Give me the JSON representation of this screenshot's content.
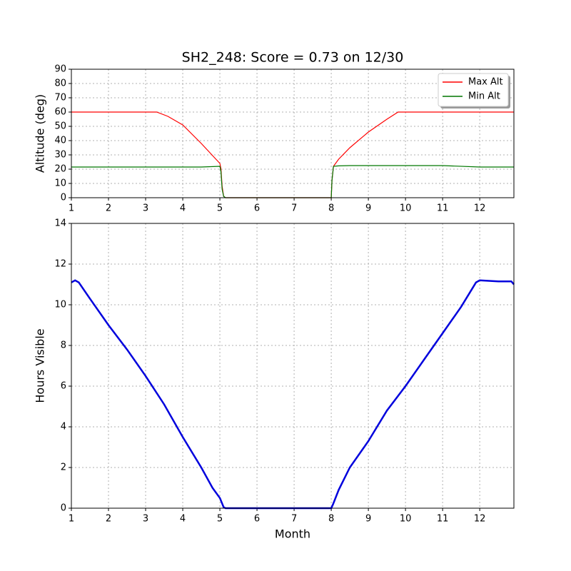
{
  "chart_data": [
    {
      "type": "line",
      "title": "SH2_248: Score = 0.73 on 12/30",
      "ylabel": "Altitude (deg)",
      "x": [
        1,
        2,
        3,
        3.3,
        3.6,
        4,
        4.5,
        5,
        5.03,
        5.06,
        5.1,
        5.15,
        6,
        7,
        8,
        8.02,
        8.06,
        8.2,
        8.5,
        9,
        9.5,
        9.8,
        10,
        11,
        12,
        12.92
      ],
      "series": [
        {
          "name": "Max Alt",
          "color": "#ff0000",
          "values": [
            60,
            60,
            60,
            60,
            57,
            51,
            38,
            24,
            20,
            8,
            1,
            0,
            0,
            0,
            0,
            12,
            22,
            27,
            35,
            46,
            55,
            60,
            60,
            60,
            60,
            60
          ]
        },
        {
          "name": "Min Alt",
          "color": "#007700",
          "values": [
            21.5,
            21.5,
            21.5,
            21.5,
            21.5,
            21.5,
            21.5,
            22,
            18,
            6,
            1,
            0,
            0,
            0,
            0,
            12,
            22,
            22.3,
            22.5,
            22.5,
            22.5,
            22.5,
            22.5,
            22.5,
            21.5,
            21.5
          ]
        }
      ],
      "xlim": [
        1,
        12.92
      ],
      "xticks": [
        1,
        2,
        3,
        4,
        5,
        6,
        7,
        8,
        9,
        10,
        11,
        12
      ],
      "ylim": [
        0,
        90
      ],
      "yticks": [
        0,
        10,
        20,
        30,
        40,
        50,
        60,
        70,
        80,
        90
      ],
      "grid": true,
      "legend": "upper right"
    },
    {
      "type": "line",
      "xlabel": "Month",
      "ylabel": "Hours Visible",
      "x": [
        1,
        1.1,
        1.2,
        1.5,
        2,
        2.5,
        3,
        3.5,
        4,
        4.5,
        4.8,
        5,
        5.1,
        5.15,
        6,
        7,
        8,
        8.05,
        8.2,
        8.5,
        9,
        9.5,
        10,
        10.5,
        11,
        11.5,
        11.9,
        12,
        12.5,
        12.85,
        12.92
      ],
      "series": [
        {
          "name": "Hours",
          "color": "#0000dd",
          "values": [
            11.1,
            11.2,
            11.1,
            10.3,
            9.0,
            7.8,
            6.5,
            5.1,
            3.5,
            2.0,
            1.0,
            0.5,
            0.05,
            0,
            0,
            0,
            0,
            0.2,
            0.9,
            2.0,
            3.3,
            4.8,
            6.0,
            7.3,
            8.6,
            9.9,
            11.1,
            11.2,
            11.15,
            11.15,
            11.0
          ]
        }
      ],
      "xlim": [
        1,
        12.92
      ],
      "xticks": [
        1,
        2,
        3,
        4,
        5,
        6,
        7,
        8,
        9,
        10,
        11,
        12
      ],
      "ylim": [
        0,
        14
      ],
      "yticks": [
        0,
        2,
        4,
        6,
        8,
        10,
        12,
        14
      ],
      "grid": true
    }
  ]
}
